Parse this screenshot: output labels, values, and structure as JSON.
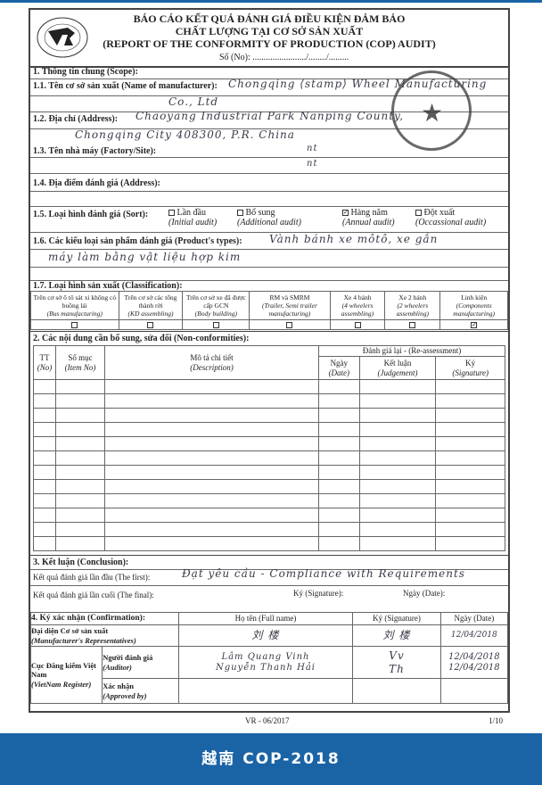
{
  "header": {
    "title_vi_1": "BÁO CÁO KẾT QUẢ ĐÁNH GIÁ ĐIỀU KIỆN ĐẢM BẢO",
    "title_vi_2": "CHẤT LƯỢNG TẠI CƠ SỞ SẢN XUẤT",
    "title_en": "(REPORT OF THE CONFORMITY OF PRODUCTION (COP) AUDIT)",
    "number_label": "Số (No): ......................../......../.........",
    "logo_text": "ĐĂNG KIỂM VIỆT NAM · VIETNAM REGISTER · VR"
  },
  "scope": {
    "heading": "1. Thông tin chung (Scope):",
    "manufacturer_label": "1.1. Tên cơ sở sản xuất (Name of manufacturer):",
    "manufacturer_value_1": "Chongqing ⟨stamp⟩ Wheel Manufacturing",
    "manufacturer_value_2": "Co., Ltd",
    "address_label": "1.2. Địa chỉ (Address):",
    "address_value_1": "Chaoyang Industrial Park Nanping County,",
    "address_value_2": "Chongqing City 408300, P.R. China",
    "factory_label": "1.3. Tên nhà máy (Factory/Site):",
    "factory_value_1": "nt",
    "factory_value_2": "nt",
    "audit_address_label": "1.4. Địa điểm đánh giá (Address):",
    "sort_label": "1.5. Loại hình đánh giá (Sort):",
    "sort_options": [
      {
        "vi": "Lần đầu",
        "en": "(Initial audit)",
        "checked": false
      },
      {
        "vi": "Bổ sung",
        "en": "(Additional audit)",
        "checked": false
      },
      {
        "vi": "Hàng năm",
        "en": "(Annual audit)",
        "checked": true
      },
      {
        "vi": "Đột xuất",
        "en": "(Occassional audit)",
        "checked": false
      }
    ],
    "product_label": "1.6. Các kiểu loại sản phẩm đánh giá (Product's types):",
    "product_value_1": "Vành bánh xe môtô, xe gắn",
    "product_value_2": "máy làm bằng vật liệu hợp kim",
    "class_label": "1.7. Loại hình sản xuất (Classification):",
    "classes": [
      {
        "vi": "Trên cơ sở ô tô sát xi không có buồng lái",
        "en": "(Bus manufacturing)",
        "checked": false
      },
      {
        "vi": "Trên cơ sở các tổng thành rời",
        "en": "(KD assembling)",
        "checked": false
      },
      {
        "vi": "Trên cơ sở xe đã được cấp GCN",
        "en": "(Body building)",
        "checked": false
      },
      {
        "vi": "RM và SMRM",
        "en": "(Trailer, Semi trailer manufacturing)",
        "checked": false
      },
      {
        "vi": "Xe 4 bánh",
        "en": "(4 wheelers assembling)",
        "checked": false
      },
      {
        "vi": "Xe 2 bánh",
        "en": "(2 wheelers assembling)",
        "checked": false
      },
      {
        "vi": "Linh kiện",
        "en": "(Components manufacturing)",
        "checked": true
      }
    ]
  },
  "nonconf": {
    "heading": "2. Các nội dung cần bổ sung, sửa đổi (Non-conformities):",
    "col_no": "TT",
    "col_no_en": "(No)",
    "col_item": "Số mục",
    "col_item_en": "(Item No)",
    "col_desc": "Mô tả chi tiết",
    "col_desc_en": "(Description)",
    "reassess": "Đánh giá lại - (Re-assessment)",
    "col_date": "Ngày",
    "col_date_en": "(Date)",
    "col_judge": "Kết luận",
    "col_judge_en": "(Judgement)",
    "col_sig": "Ký",
    "col_sig_en": "(Signature)"
  },
  "conclusion": {
    "heading": "3. Kết luận (Conclusion):",
    "first_label": "Kết quả đánh giá lần đầu (The first):",
    "first_value": "Đạt yêu cầu - Compliance with Requirements",
    "final_label": "Kết quả đánh giá lần cuối (The final):",
    "signature_label": "Ký (Signature):",
    "date_label": "Ngày (Date):"
  },
  "confirm": {
    "heading": "4. Ký xác nhận (Confirmation):",
    "col_name": "Họ tên (Full name)",
    "col_sig": "Ký (Signature)",
    "col_date": "Ngày (Date)",
    "mfr_rep": "Đại diện Cơ sở sản xuất",
    "mfr_rep_en": "(Manufacturer's Representatives)",
    "mfr_name": "刘 楼",
    "mfr_sig": "刘 楼",
    "mfr_date": "12/04/2018",
    "vr": "Cục Đăng kiểm Việt Nam",
    "vr_en": "(VietNam Register)",
    "auditor": "Người đánh giá",
    "auditor_en": "(Auditor)",
    "auditor_1_name": "Lâm Quang Vinh",
    "auditor_1_sig": "Vv",
    "auditor_1_date": "12/04/2018",
    "auditor_2_name": "Nguyễn Thanh Hải",
    "auditor_2_sig": "Th",
    "auditor_2_date": "12/04/2018",
    "approved": "Xác nhận",
    "approved_en": "(Approved by)"
  },
  "footer": {
    "form_code": "VR - 06/2017",
    "page": "1/10"
  },
  "banner": {
    "text": "越南 COP-2018",
    "color": "#1a64a6"
  }
}
